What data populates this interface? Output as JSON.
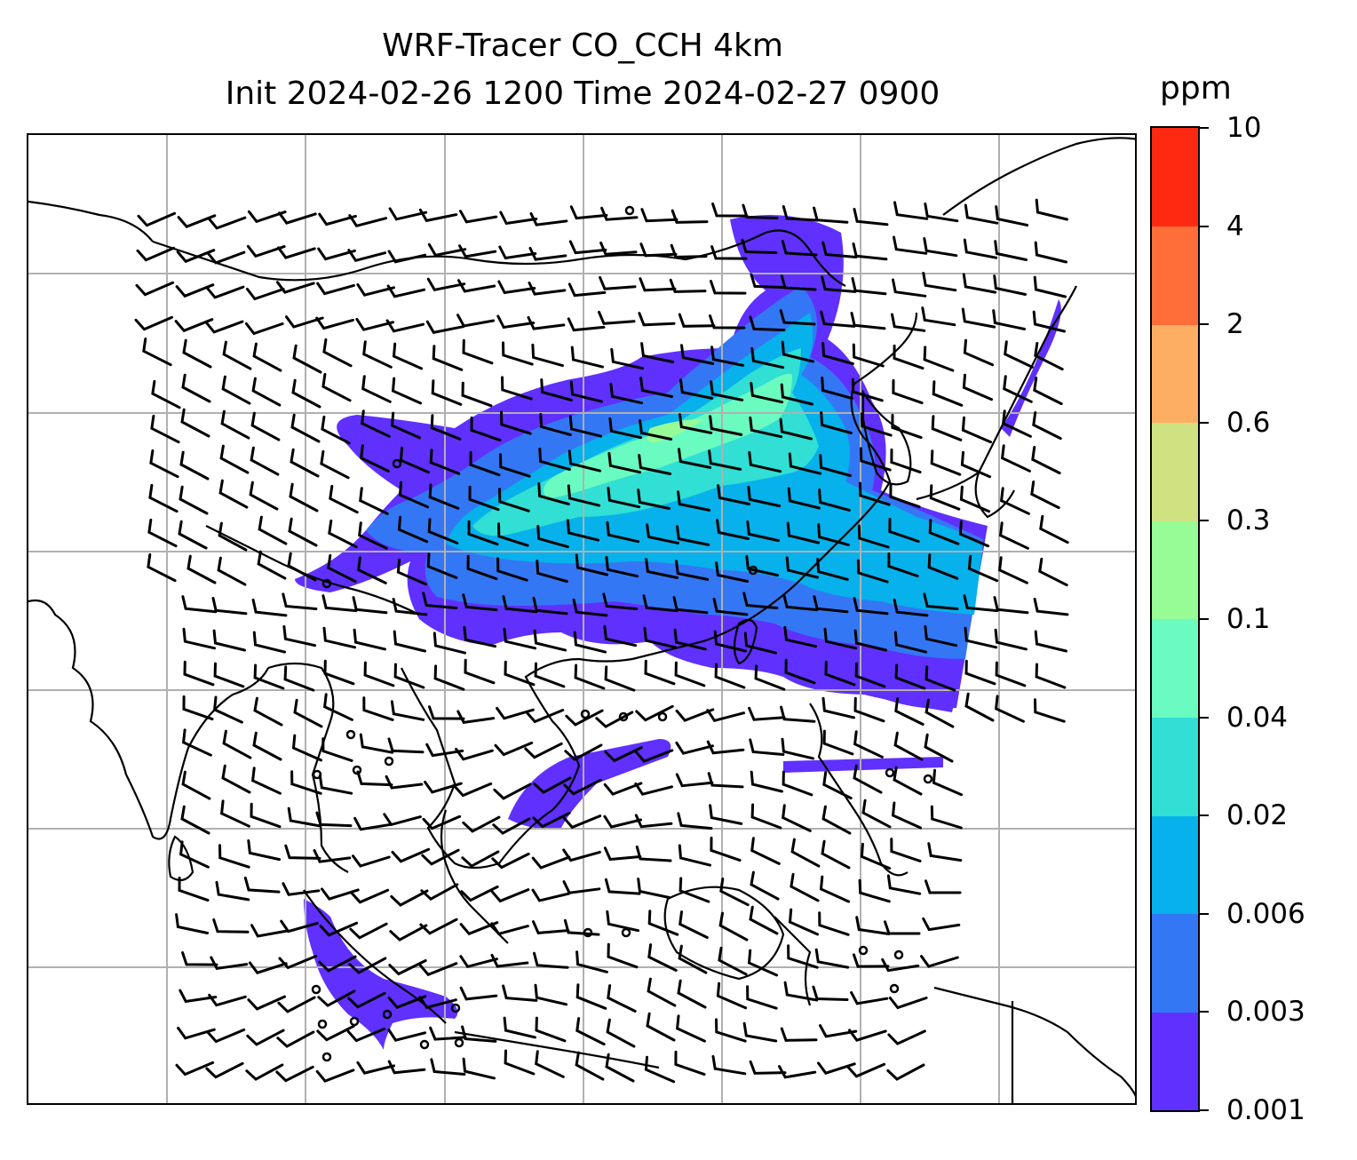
{
  "title": {
    "line1": "WRF-Tracer CO_CCH 4km",
    "line2": "Init 2024-02-26 1200 Time 2024-02-27 0900"
  },
  "colorbar": {
    "unit_label": "ppm",
    "tick_labels": [
      "0.001",
      "0.003",
      "0.006",
      "0.02",
      "0.04",
      "0.1",
      "0.3",
      "0.6",
      "2",
      "4",
      "10"
    ],
    "colors": [
      "#6030ff",
      "#3477f5",
      "#07b1eb",
      "#31dfd4",
      "#6afbc0",
      "#98fc96",
      "#d0e182",
      "#fdae63",
      "#ff6d39",
      "#ff2912"
    ]
  },
  "map": {
    "gridlines": true,
    "coastlines": true,
    "overlay": "wind-barbs",
    "field": "CO_CCH tracer concentration"
  }
}
